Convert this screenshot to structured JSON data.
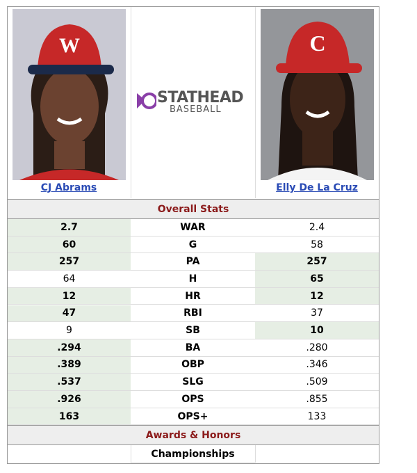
{
  "players": [
    {
      "name": "CJ Abrams"
    },
    {
      "name": "Elly De La Cruz"
    }
  ],
  "logo": {
    "brand": "STATHEAD",
    "sub": "BASEBALL"
  },
  "overall_stats": {
    "title": "Overall Stats",
    "rows": [
      {
        "stat": "WAR",
        "left": "2.7",
        "right": "2.4",
        "leader": "left"
      },
      {
        "stat": "G",
        "left": "60",
        "right": "58",
        "leader": "left"
      },
      {
        "stat": "PA",
        "left": "257",
        "right": "257",
        "leader": "both"
      },
      {
        "stat": "H",
        "left": "64",
        "right": "65",
        "leader": "right"
      },
      {
        "stat": "HR",
        "left": "12",
        "right": "12",
        "leader": "both"
      },
      {
        "stat": "RBI",
        "left": "47",
        "right": "37",
        "leader": "left"
      },
      {
        "stat": "SB",
        "left": "9",
        "right": "10",
        "leader": "right"
      },
      {
        "stat": "BA",
        "left": ".294",
        "right": ".280",
        "leader": "left"
      },
      {
        "stat": "OBP",
        "left": ".389",
        "right": ".346",
        "leader": "left"
      },
      {
        "stat": "SLG",
        "left": ".537",
        "right": ".509",
        "leader": "left"
      },
      {
        "stat": "OPS",
        "left": ".926",
        "right": ".855",
        "leader": "left"
      },
      {
        "stat": "OPS+",
        "left": "163",
        "right": "133",
        "leader": "left"
      }
    ]
  },
  "awards": {
    "title": "Awards & Honors",
    "rows": [
      {
        "stat": "Championships"
      }
    ]
  }
}
